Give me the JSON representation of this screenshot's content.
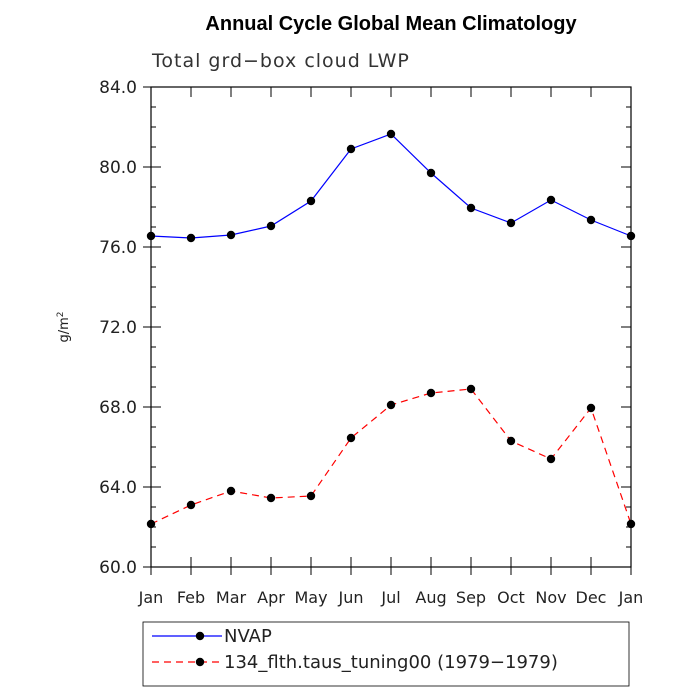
{
  "chart_data": {
    "type": "line",
    "title": "Annual Cycle Global Mean Climatology",
    "subtitle": "Total grd−box cloud LWP",
    "ylabel": "g/m",
    "ylabel_sup": "2",
    "xlabel": "",
    "categories": [
      "Jan",
      "Feb",
      "Mar",
      "Apr",
      "May",
      "Jun",
      "Jul",
      "Aug",
      "Sep",
      "Oct",
      "Nov",
      "Dec",
      "Jan"
    ],
    "ylim": [
      60.0,
      84.0
    ],
    "yticks": [
      "60.0",
      "64.0",
      "68.0",
      "72.0",
      "76.0",
      "80.0",
      "84.0"
    ],
    "series": [
      {
        "name": "NVAP",
        "color": "#0000ff",
        "dash": "solid",
        "values": [
          76.55,
          76.45,
          76.6,
          77.05,
          78.3,
          80.9,
          81.65,
          79.7,
          77.95,
          77.2,
          78.35,
          77.35,
          76.55
        ]
      },
      {
        "name": "134_flth.taus_tuning00 (1979−1979)",
        "color": "#ff0000",
        "dash": "dashed",
        "values": [
          62.15,
          63.1,
          63.8,
          63.45,
          63.55,
          66.45,
          68.1,
          68.7,
          68.9,
          66.3,
          65.4,
          67.95,
          62.15
        ]
      }
    ],
    "legend_position": "bottom",
    "grid": false
  }
}
